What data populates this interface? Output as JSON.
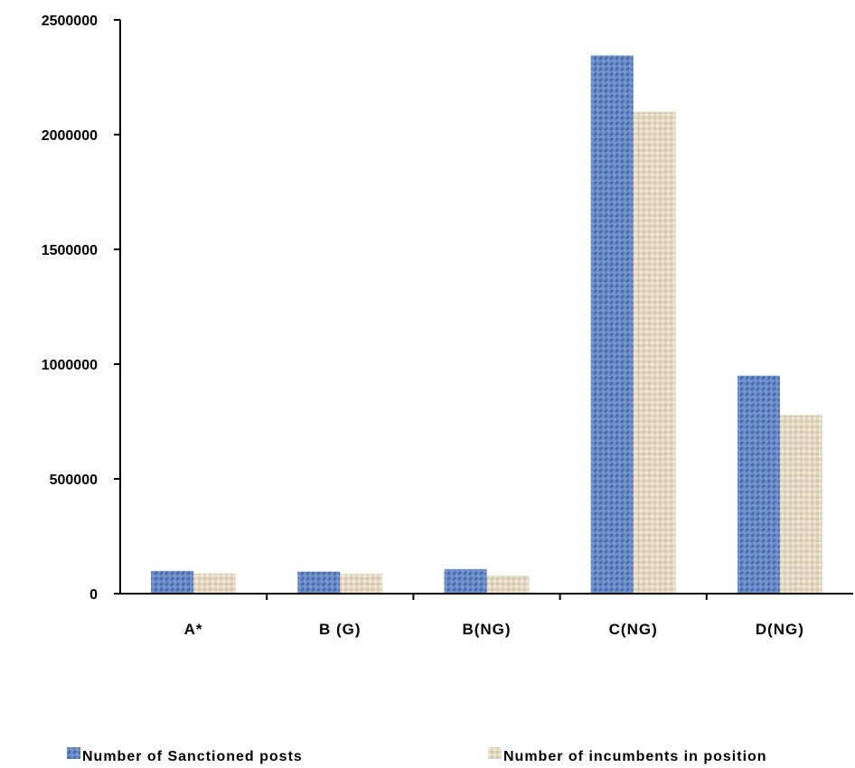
{
  "chart_data": {
    "type": "bar",
    "categories": [
      "A*",
      "B (G)",
      "B(NG)",
      "C(NG)",
      "D(NG)"
    ],
    "series": [
      {
        "name": "Number of Sanctioned posts",
        "values": [
          99000,
          96000,
          107000,
          2345000,
          950000
        ],
        "color": "#5b7fbf"
      },
      {
        "name": "Number of incumbents in position",
        "values": [
          88000,
          86000,
          79000,
          2100000,
          778000
        ],
        "color": "#e2d6c0"
      }
    ],
    "ylim": [
      0,
      2500000
    ],
    "yticks": [
      0,
      500000,
      1000000,
      1500000,
      2000000,
      2500000
    ],
    "ytick_labels": [
      "0",
      "500000",
      "1000000",
      "1500000",
      "2000000",
      "2500000"
    ],
    "grid": false,
    "legend_position": "bottom"
  }
}
